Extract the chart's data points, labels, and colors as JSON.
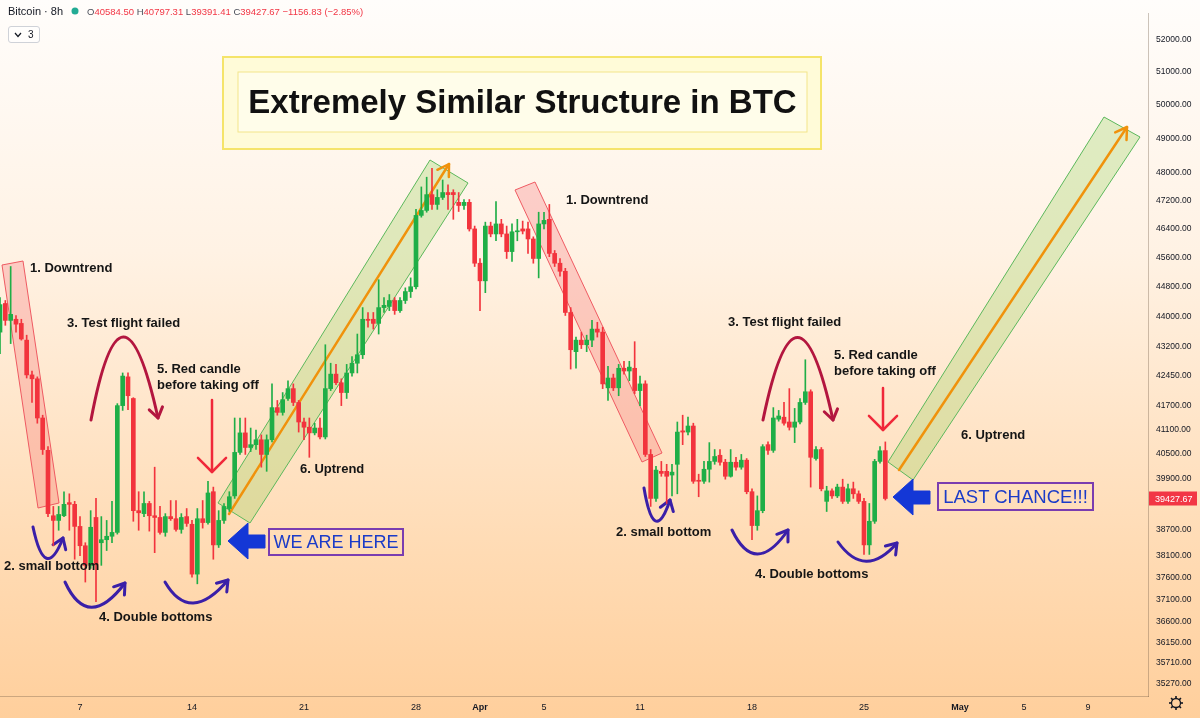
{
  "chart_data": {
    "type": "candlestick",
    "title": "Extremely Similar Structure in BTC",
    "subtitle": "Bitcoin · 8h",
    "x": [
      "--03-02T00:00",
      "--03-02T08:00",
      "--03-02T16:00",
      "--03-03T00:00",
      "--03-03T08:00",
      "--03-03T16:00",
      "--03-04T00:00",
      "--03-04T08:00",
      "--03-04T16:00",
      "--03-05T00:00",
      "--03-05T08:00",
      "--03-05T16:00",
      "--03-06T00:00",
      "--03-06T08:00",
      "--03-06T16:00",
      "--03-07T00:00",
      "--03-07T08:00",
      "--03-07T16:00",
      "--03-08T00:00",
      "--03-08T08:00",
      "--03-08T16:00",
      "--03-09T00:00",
      "--03-09T08:00",
      "--03-09T16:00",
      "--03-10T00:00",
      "--03-10T08:00",
      "--03-10T16:00",
      "--03-11T00:00",
      "--03-11T08:00",
      "--03-11T16:00",
      "--03-12T00:00",
      "--03-12T08:00",
      "--03-12T16:00",
      "--03-13T00:00",
      "--03-13T08:00",
      "--03-13T16:00",
      "--03-14T00:00",
      "--03-14T08:00",
      "--03-14T16:00",
      "--03-15T00:00",
      "--03-15T08:00",
      "--03-15T16:00",
      "--03-16T00:00",
      "--03-16T08:00",
      "--03-16T16:00",
      "--03-17T00:00",
      "--03-17T08:00",
      "--03-17T16:00",
      "--03-18T00:00",
      "--03-18T08:00",
      "--03-18T16:00",
      "--03-19T00:00",
      "--03-19T08:00",
      "--03-19T16:00",
      "--03-20T00:00",
      "--03-20T08:00",
      "--03-20T16:00",
      "--03-21T00:00",
      "--03-21T08:00",
      "--03-21T16:00",
      "--03-22T00:00",
      "--03-22T08:00",
      "--03-22T16:00",
      "--03-23T00:00",
      "--03-23T08:00",
      "--03-23T16:00",
      "--03-24T00:00",
      "--03-24T08:00",
      "--03-24T16:00",
      "--03-25T00:00",
      "--03-25T08:00",
      "--03-25T16:00",
      "--03-26T00:00",
      "--03-26T08:00",
      "--03-26T16:00",
      "--03-27T00:00",
      "--03-27T08:00",
      "--03-27T16:00",
      "--03-28T00:00",
      "--03-28T08:00",
      "--03-28T16:00",
      "--03-29T00:00",
      "--03-29T08:00",
      "--03-29T16:00",
      "--03-30T00:00",
      "--03-30T08:00",
      "--03-30T16:00",
      "--03-31T00:00",
      "--03-31T08:00",
      "--03-31T16:00",
      "--04-01T00:00",
      "--04-01T08:00",
      "--04-01T16:00",
      "--04-02T00:00",
      "--04-02T08:00",
      "--04-02T16:00",
      "--04-03T00:00",
      "--04-03T08:00",
      "--04-03T16:00",
      "--04-04T00:00",
      "--04-04T08:00",
      "--04-04T16:00",
      "--04-05T00:00",
      "--04-05T08:00",
      "--04-05T16:00",
      "--04-06T00:00",
      "--04-06T08:00",
      "--04-06T16:00",
      "--04-07T00:00",
      "--04-07T08:00",
      "--04-07T16:00",
      "--04-08T00:00",
      "--04-08T08:00",
      "--04-08T16:00",
      "--04-09T00:00",
      "--04-09T08:00",
      "--04-09T16:00",
      "--04-10T00:00",
      "--04-10T08:00",
      "--04-10T16:00",
      "--04-11T00:00",
      "--04-11T08:00",
      "--04-11T16:00",
      "--04-12T00:00",
      "--04-12T08:00",
      "--04-12T16:00",
      "--04-13T00:00",
      "--04-13T08:00",
      "--04-13T16:00",
      "--04-14T00:00",
      "--04-14T08:00",
      "--04-14T16:00",
      "--04-15T00:00",
      "--04-15T08:00",
      "--04-15T16:00",
      "--04-16T00:00",
      "--04-16T08:00",
      "--04-16T16:00",
      "--04-17T00:00",
      "--04-17T08:00",
      "--04-17T16:00",
      "--04-18T00:00",
      "--04-18T08:00",
      "--04-18T16:00",
      "--04-19T00:00",
      "--04-19T08:00",
      "--04-19T16:00",
      "--04-20T00:00",
      "--04-20T08:00",
      "--04-20T16:00",
      "--04-21T00:00",
      "--04-21T08:00",
      "--04-21T16:00",
      "--04-22T00:00",
      "--04-22T08:00",
      "--04-22T16:00",
      "--04-23T00:00",
      "--04-23T08:00",
      "--04-23T16:00",
      "--04-24T00:00",
      "--04-24T08:00",
      "--04-24T16:00",
      "--04-25T00:00",
      "--04-25T08:00",
      "--04-25T16:00",
      "--04-26T00:00",
      "--04-26T08:00"
    ],
    "ohlc": [
      [
        43590,
        44510,
        43030,
        44320
      ],
      [
        44350,
        44430,
        43770,
        43900
      ],
      [
        43900,
        45350,
        43290,
        44060
      ],
      [
        43930,
        44030,
        43590,
        43800
      ],
      [
        43820,
        43930,
        43380,
        43410
      ],
      [
        43380,
        43510,
        42400,
        42480
      ],
      [
        42480,
        42580,
        41780,
        42380
      ],
      [
        42380,
        42430,
        41260,
        41390
      ],
      [
        41390,
        41460,
        40490,
        40610
      ],
      [
        40590,
        40680,
        39000,
        39070
      ],
      [
        39020,
        39240,
        38320,
        38910
      ],
      [
        38910,
        39240,
        38680,
        39050
      ],
      [
        39020,
        39590,
        39000,
        39290
      ],
      [
        39330,
        39540,
        38680,
        39290
      ],
      [
        39290,
        39360,
        38010,
        38770
      ],
      [
        38770,
        39000,
        38090,
        38320
      ],
      [
        38320,
        38390,
        37490,
        37870
      ],
      [
        37870,
        39140,
        37800,
        38750
      ],
      [
        38980,
        39430,
        37050,
        37890
      ],
      [
        38390,
        39000,
        37870,
        38460
      ],
      [
        38460,
        38910,
        38210,
        38540
      ],
      [
        38540,
        39360,
        38390,
        38630
      ],
      [
        38630,
        41750,
        38590,
        41700
      ],
      [
        41700,
        42530,
        41580,
        42450
      ],
      [
        42430,
        42530,
        41600,
        41950
      ],
      [
        41880,
        41900,
        38890,
        39140
      ],
      [
        39140,
        39590,
        38680,
        39090
      ],
      [
        39070,
        39590,
        39000,
        39310
      ],
      [
        39310,
        39360,
        38660,
        39020
      ],
      [
        39020,
        40180,
        38160,
        38980
      ],
      [
        38980,
        39240,
        38590,
        38630
      ],
      [
        38630,
        39070,
        38540,
        39000
      ],
      [
        39000,
        39380,
        38910,
        38950
      ],
      [
        38950,
        39380,
        38660,
        38700
      ],
      [
        38700,
        39070,
        38610,
        38980
      ],
      [
        39000,
        39190,
        38770,
        38840
      ],
      [
        38820,
        38910,
        37600,
        37670
      ],
      [
        37670,
        39190,
        37450,
        38950
      ],
      [
        38950,
        39380,
        38730,
        38860
      ],
      [
        38860,
        39840,
        38820,
        39560
      ],
      [
        39590,
        39700,
        38010,
        38340
      ],
      [
        38340,
        39140,
        38280,
        38910
      ],
      [
        38910,
        39310,
        38840,
        39240
      ],
      [
        39190,
        39590,
        39120,
        39470
      ],
      [
        39490,
        41390,
        39430,
        40540
      ],
      [
        40540,
        41390,
        40490,
        41020
      ],
      [
        41020,
        41390,
        40490,
        40660
      ],
      [
        40660,
        41140,
        40560,
        40730
      ],
      [
        40730,
        41090,
        40610,
        40850
      ],
      [
        40850,
        40970,
        40180,
        40490
      ],
      [
        40490,
        40970,
        40080,
        40850
      ],
      [
        40850,
        42250,
        40800,
        41650
      ],
      [
        41650,
        41830,
        41460,
        41530
      ],
      [
        41530,
        42030,
        41460,
        41850
      ],
      [
        41880,
        42330,
        41830,
        42130
      ],
      [
        42130,
        42250,
        41700,
        41780
      ],
      [
        41780,
        41830,
        41040,
        41290
      ],
      [
        41290,
        41390,
        40850,
        41160
      ],
      [
        41160,
        41390,
        40420,
        41020
      ],
      [
        41020,
        41260,
        40970,
        41140
      ],
      [
        41140,
        41390,
        40870,
        40920
      ],
      [
        40920,
        43260,
        40870,
        42130
      ],
      [
        42130,
        42780,
        42080,
        42500
      ],
      [
        42500,
        42750,
        42230,
        42280
      ],
      [
        42280,
        42380,
        41700,
        42030
      ],
      [
        42030,
        42750,
        41880,
        42530
      ],
      [
        42530,
        42950,
        42450,
        42780
      ],
      [
        42780,
        43540,
        42530,
        43000
      ],
      [
        43000,
        44240,
        42900,
        43930
      ],
      [
        43930,
        44110,
        43720,
        43900
      ],
      [
        43930,
        44110,
        43670,
        43820
      ],
      [
        43820,
        44990,
        43540,
        44240
      ],
      [
        44240,
        44510,
        44110,
        44300
      ],
      [
        44270,
        44590,
        44160,
        44430
      ],
      [
        44430,
        44510,
        44060,
        44160
      ],
      [
        44160,
        44510,
        44110,
        44430
      ],
      [
        44430,
        44770,
        44350,
        44670
      ],
      [
        44670,
        45040,
        44510,
        44800
      ],
      [
        44800,
        46940,
        44740,
        46770
      ],
      [
        46770,
        47580,
        46720,
        46910
      ],
      [
        46910,
        47860,
        46860,
        47360
      ],
      [
        47360,
        48120,
        46940,
        47080
      ],
      [
        47080,
        47500,
        46940,
        47280
      ],
      [
        47280,
        47780,
        47220,
        47420
      ],
      [
        47420,
        47640,
        46940,
        47360
      ],
      [
        47420,
        47500,
        46660,
        47360
      ],
      [
        47140,
        47420,
        46880,
        47050
      ],
      [
        47050,
        47220,
        46940,
        47140
      ],
      [
        47140,
        47220,
        46330,
        46390
      ],
      [
        46390,
        46470,
        45350,
        45440
      ],
      [
        45440,
        45570,
        44160,
        44960
      ],
      [
        44960,
        46580,
        44640,
        46470
      ],
      [
        46470,
        46580,
        46170,
        46250
      ],
      [
        46250,
        47160,
        46060,
        46530
      ],
      [
        46530,
        46660,
        46170,
        46250
      ],
      [
        46250,
        46470,
        45570,
        45760
      ],
      [
        45760,
        46530,
        45490,
        46310
      ],
      [
        46310,
        46660,
        46060,
        46330
      ],
      [
        46390,
        46610,
        46250,
        46330
      ],
      [
        46390,
        46580,
        45710,
        46110
      ],
      [
        46110,
        46170,
        45440,
        45570
      ],
      [
        45570,
        46860,
        45040,
        46530
      ],
      [
        46530,
        46860,
        46390,
        46630
      ],
      [
        46660,
        47080,
        45620,
        45710
      ],
      [
        45710,
        45790,
        45350,
        45440
      ],
      [
        45440,
        45570,
        45090,
        45220
      ],
      [
        45220,
        45300,
        44030,
        44110
      ],
      [
        44110,
        44240,
        42630,
        43130
      ],
      [
        43080,
        43460,
        42650,
        43380
      ],
      [
        43380,
        43590,
        43160,
        43260
      ],
      [
        43260,
        43510,
        43080,
        43380
      ],
      [
        43380,
        43900,
        43210,
        43670
      ],
      [
        43670,
        43850,
        43460,
        43590
      ],
      [
        43590,
        43720,
        42130,
        42250
      ],
      [
        42150,
        42700,
        41830,
        42400
      ],
      [
        42400,
        42500,
        42080,
        42150
      ],
      [
        42150,
        42750,
        41950,
        42650
      ],
      [
        42650,
        42830,
        42500,
        42580
      ],
      [
        42580,
        42830,
        42330,
        42680
      ],
      [
        42650,
        43340,
        42000,
        42080
      ],
      [
        42080,
        42450,
        41700,
        42250
      ],
      [
        42250,
        42330,
        40440,
        40490
      ],
      [
        40490,
        40610,
        39240,
        39430
      ],
      [
        39430,
        40200,
        39360,
        40110
      ],
      [
        40080,
        40320,
        39960,
        40030
      ],
      [
        40080,
        40250,
        39310,
        39960
      ],
      [
        39990,
        40250,
        39490,
        40060
      ],
      [
        40250,
        41290,
        39540,
        41040
      ],
      [
        41070,
        41460,
        40730,
        41040
      ],
      [
        41040,
        41410,
        40970,
        41190
      ],
      [
        41190,
        41260,
        39790,
        39840
      ],
      [
        39860,
        40010,
        39470,
        39840
      ],
      [
        39840,
        40320,
        39790,
        40130
      ],
      [
        40130,
        40780,
        39820,
        40320
      ],
      [
        40320,
        40610,
        40250,
        40440
      ],
      [
        40470,
        40610,
        40230,
        40300
      ],
      [
        40300,
        40370,
        39890,
        39960
      ],
      [
        39960,
        40610,
        39940,
        40300
      ],
      [
        40300,
        40420,
        40110,
        40180
      ],
      [
        40180,
        40490,
        40130,
        40350
      ],
      [
        40350,
        40390,
        39540,
        39590
      ],
      [
        39590,
        39660,
        38460,
        38790
      ],
      [
        38790,
        39490,
        38680,
        39140
      ],
      [
        39140,
        40730,
        39090,
        40680
      ],
      [
        40730,
        40800,
        40490,
        40590
      ],
      [
        40590,
        41650,
        40540,
        41390
      ],
      [
        41360,
        41580,
        41310,
        41440
      ],
      [
        41410,
        41780,
        41210,
        41260
      ],
      [
        41290,
        42130,
        41090,
        41160
      ],
      [
        41160,
        41630,
        40780,
        41290
      ],
      [
        41290,
        41880,
        41240,
        41780
      ],
      [
        41780,
        42870,
        41730,
        42050
      ],
      [
        42050,
        42100,
        39700,
        40420
      ],
      [
        40390,
        40680,
        40350,
        40610
      ],
      [
        40610,
        40660,
        39610,
        39660
      ],
      [
        39360,
        39720,
        39120,
        39610
      ],
      [
        39610,
        39660,
        39430,
        39490
      ],
      [
        39490,
        39770,
        39450,
        39700
      ],
      [
        39700,
        39890,
        39310,
        39360
      ],
      [
        39360,
        39770,
        39310,
        39660
      ],
      [
        39660,
        39820,
        39430,
        39540
      ],
      [
        39540,
        39610,
        39310,
        39360
      ],
      [
        39360,
        39430,
        38120,
        38340
      ],
      [
        38340,
        39310,
        38120,
        38890
      ],
      [
        38890,
        40370,
        38840,
        40320
      ],
      [
        40320,
        40680,
        40280,
        40580
      ],
      [
        40584.5,
        40797.31,
        39391.41,
        39427.67
      ]
    ],
    "colors": [
      "#1fae47",
      "#f2343d",
      "#1fae47",
      "#f2343d",
      "#f2343d",
      "#f2343d",
      "#f2343d",
      "#f2343d",
      "#f2343d",
      "#f2343d",
      "#f2343d",
      "#1fae47",
      "#1fae47",
      "#f2343d",
      "#f2343d",
      "#f2343d",
      "#f2343d",
      "#1fae47",
      "#f2343d",
      "#1fae47",
      "#1fae47",
      "#1fae47",
      "#1fae47",
      "#1fae47",
      "#f2343d",
      "#f2343d",
      "#f2343d",
      "#1fae47",
      "#f2343d",
      "#f2343d",
      "#f2343d",
      "#1fae47",
      "#f2343d",
      "#f2343d",
      "#1fae47",
      "#f2343d",
      "#f2343d",
      "#1fae47",
      "#f2343d",
      "#1fae47",
      "#f2343d",
      "#1fae47",
      "#1fae47",
      "#1fae47",
      "#1fae47",
      "#1fae47",
      "#f2343d",
      "#1fae47",
      "#1fae47",
      "#f2343d",
      "#1fae47",
      "#1fae47",
      "#f2343d",
      "#1fae47",
      "#1fae47",
      "#f2343d",
      "#f2343d",
      "#f2343d",
      "#f2343d",
      "#1fae47",
      "#f2343d",
      "#1fae47",
      "#1fae47",
      "#f2343d",
      "#f2343d",
      "#1fae47",
      "#1fae47",
      "#1fae47",
      "#1fae47",
      "#f2343d",
      "#f2343d",
      "#1fae47",
      "#1fae47",
      "#1fae47",
      "#f2343d",
      "#1fae47",
      "#1fae47",
      "#1fae47",
      "#1fae47",
      "#1fae47",
      "#1fae47",
      "#f2343d",
      "#1fae47",
      "#1fae47",
      "#f2343d",
      "#f2343d",
      "#f2343d",
      "#1fae47",
      "#f2343d",
      "#f2343d",
      "#f2343d",
      "#1fae47",
      "#f2343d",
      "#1fae47",
      "#f2343d",
      "#f2343d",
      "#1fae47",
      "#1fae47",
      "#f2343d",
      "#f2343d",
      "#f2343d",
      "#1fae47",
      "#1fae47",
      "#f2343d",
      "#f2343d",
      "#f2343d",
      "#f2343d",
      "#f2343d",
      "#1fae47",
      "#f2343d",
      "#1fae47",
      "#1fae47",
      "#f2343d",
      "#f2343d",
      "#1fae47",
      "#f2343d",
      "#1fae47",
      "#f2343d",
      "#1fae47",
      "#f2343d",
      "#1fae47",
      "#f2343d",
      "#f2343d",
      "#1fae47",
      "#f2343d",
      "#f2343d",
      "#1fae47",
      "#1fae47",
      "#f2343d",
      "#1fae47",
      "#f2343d",
      "#f2343d",
      "#1fae47",
      "#1fae47",
      "#1fae47",
      "#f2343d",
      "#f2343d",
      "#1fae47",
      "#f2343d",
      "#1fae47",
      "#f2343d",
      "#f2343d",
      "#1fae47",
      "#1fae47",
      "#f2343d",
      "#1fae47",
      "#1fae47",
      "#f2343d",
      "#f2343d",
      "#1fae47",
      "#1fae47",
      "#1fae47",
      "#f2343d",
      "#1fae47",
      "#f2343d",
      "#1fae47",
      "#f2343d",
      "#1fae47",
      "#f2343d",
      "#1fae47",
      "#f2343d",
      "#f2343d",
      "#f2343d",
      "#1fae47",
      "#1fae47",
      "#1fae47",
      "#f2343d"
    ],
    "xlim": [
      "--03-02T00:00",
      "--05-12T18:00"
    ],
    "xticks": [
      {
        "value": "--03-07",
        "label": "7"
      },
      {
        "value": "--03-14",
        "label": "14"
      },
      {
        "value": "--03-21",
        "label": "21"
      },
      {
        "value": "--03-28",
        "label": "28"
      },
      {
        "value": "--04-01",
        "label": "Apr"
      },
      {
        "value": "--04-05",
        "label": "5"
      },
      {
        "value": "--04-11",
        "label": "11"
      },
      {
        "value": "--04-18",
        "label": "18"
      },
      {
        "value": "--04-25",
        "label": "25"
      },
      {
        "value": "--05-01",
        "label": "May"
      },
      {
        "value": "--05-05",
        "label": "5"
      },
      {
        "value": "--05-09",
        "label": "9"
      }
    ],
    "ylim": [
      35000,
      52840
    ],
    "yticks": [
      {
        "value": 52000,
        "label": "52000.00"
      },
      {
        "value": 51000,
        "label": "51000.00"
      },
      {
        "value": 50000,
        "label": "50000.00"
      },
      {
        "value": 49000,
        "label": "49000.00"
      },
      {
        "value": 48000,
        "label": "48000.00"
      },
      {
        "value": 47200,
        "label": "47200.00"
      },
      {
        "value": 46400,
        "label": "46400.00"
      },
      {
        "value": 45600,
        "label": "45600.00"
      },
      {
        "value": 44800,
        "label": "44800.00"
      },
      {
        "value": 44000,
        "label": "44000.00"
      },
      {
        "value": 43200,
        "label": "43200.00"
      },
      {
        "value": 42450,
        "label": "42450.00"
      },
      {
        "value": 41700,
        "label": "41700.00"
      },
      {
        "value": 41100,
        "label": "41100.00"
      },
      {
        "value": 40500,
        "label": "40500.00"
      },
      {
        "value": 39900,
        "label": "39900.00"
      },
      {
        "value": 38700,
        "label": "38700.00"
      },
      {
        "value": 38100,
        "label": "38100.00"
      },
      {
        "value": 37600,
        "label": "37600.00"
      },
      {
        "value": 37100,
        "label": "37100.00"
      },
      {
        "value": 36600,
        "label": "36600.00"
      },
      {
        "value": 36150,
        "label": "36150.00"
      },
      {
        "value": 35710,
        "label": "35710.00"
      },
      {
        "value": 35270,
        "label": "35270.00"
      }
    ],
    "log": true,
    "annotations": [
      "O40584.50 H40797.31 L39391.41 C39427.67 −1156.83 (−2.85%)",
      "3",
      "1. Downtrend",
      "3. Test flight failed",
      "5. Red candle\nbefore taking off",
      "6. Uptrend",
      "2. small bottom",
      "4. Double bottoms",
      "WE ARE HERE",
      "1. Downtrend",
      "3. Test flight failed",
      "5. Red candle\nbefore taking off",
      "6. Uptrend",
      "2. small bottom",
      "4. Double bottoms",
      "LAST CHANCE!!!",
      "39427.67"
    ]
  }
}
